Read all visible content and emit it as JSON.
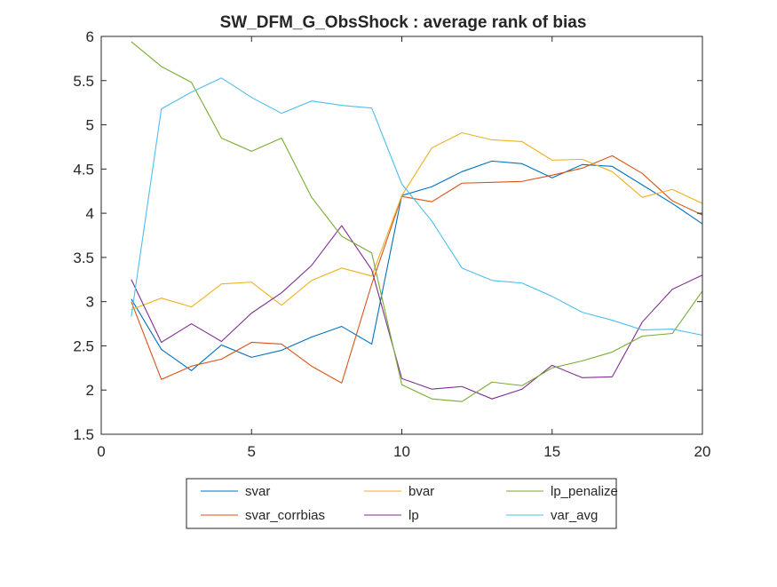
{
  "chart_data": {
    "type": "line",
    "title": "SW_DFM_G_ObsShock : average rank of bias",
    "xlabel": "",
    "ylabel": "",
    "xlim": [
      0,
      20
    ],
    "ylim": [
      1.5,
      6
    ],
    "xticks": [
      0,
      5,
      10,
      15,
      20
    ],
    "yticks": [
      1.5,
      2,
      2.5,
      3,
      3.5,
      4,
      4.5,
      5,
      5.5,
      6
    ],
    "grid": false,
    "legend_position": "bottom-outside",
    "x": [
      1,
      2,
      3,
      4,
      5,
      6,
      7,
      8,
      9,
      10,
      11,
      12,
      13,
      14,
      15,
      16,
      17,
      18,
      19,
      20
    ],
    "series": [
      {
        "name": "svar",
        "color": "#0072BD",
        "values": [
          3.03,
          2.46,
          2.22,
          2.51,
          2.37,
          2.45,
          2.6,
          2.72,
          2.52,
          4.2,
          4.3,
          4.47,
          4.59,
          4.56,
          4.4,
          4.55,
          4.53,
          4.32,
          4.11,
          3.88
        ]
      },
      {
        "name": "svar_corrbias",
        "color": "#D95319",
        "values": [
          3.0,
          2.12,
          2.27,
          2.35,
          2.54,
          2.52,
          2.27,
          2.08,
          3.2,
          4.19,
          4.13,
          4.34,
          4.35,
          4.36,
          4.43,
          4.51,
          4.65,
          4.45,
          4.14,
          3.98
        ]
      },
      {
        "name": "bvar",
        "color": "#EDB120",
        "values": [
          2.91,
          3.04,
          2.94,
          3.2,
          3.22,
          2.96,
          3.24,
          3.38,
          3.29,
          4.2,
          4.74,
          4.91,
          4.83,
          4.81,
          4.6,
          4.61,
          4.47,
          4.18,
          4.27,
          4.11
        ]
      },
      {
        "name": "lp",
        "color": "#7E2F8E",
        "values": [
          3.25,
          2.54,
          2.75,
          2.55,
          2.87,
          3.1,
          3.41,
          3.86,
          3.36,
          2.13,
          2.01,
          2.04,
          1.9,
          2.01,
          2.28,
          2.14,
          2.15,
          2.77,
          3.14,
          3.3
        ]
      },
      {
        "name": "lp_penalize",
        "color": "#77AC30",
        "values": [
          5.94,
          5.66,
          5.48,
          4.85,
          4.7,
          4.85,
          4.18,
          3.74,
          3.55,
          2.06,
          1.9,
          1.87,
          2.09,
          2.05,
          2.25,
          2.33,
          2.43,
          2.61,
          2.64,
          3.12
        ]
      },
      {
        "name": "var_avg",
        "color": "#4DBEEE",
        "values": [
          2.83,
          5.18,
          5.37,
          5.53,
          5.31,
          5.13,
          5.27,
          5.22,
          5.19,
          4.33,
          3.91,
          3.38,
          3.24,
          3.21,
          3.06,
          2.88,
          2.79,
          2.68,
          2.69,
          2.62
        ]
      }
    ],
    "legend_order": [
      "svar",
      "bvar",
      "lp_penalize",
      "svar_corrbias",
      "lp",
      "var_avg"
    ]
  }
}
